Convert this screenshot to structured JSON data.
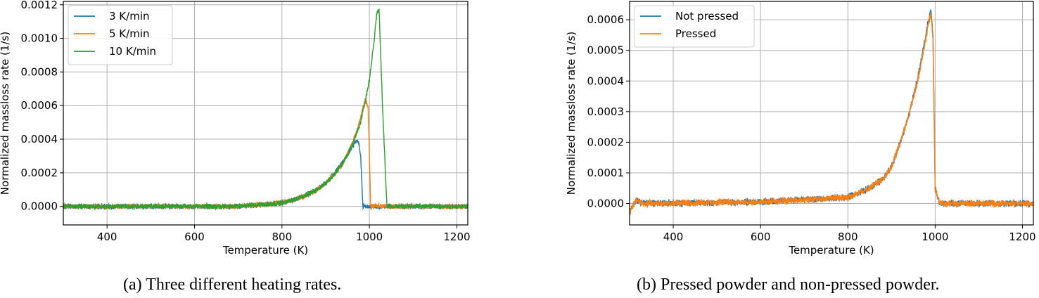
{
  "captions": {
    "a": "(a) Three different heating rates.",
    "b": "(b) Pressed powder and non-pressed powder."
  },
  "chart_data": [
    {
      "type": "line",
      "xlabel": "Temperature (K)",
      "ylabel": "Normalized massloss rate (1/s)",
      "xlim": [
        300,
        1225
      ],
      "ylim": [
        -0.00011,
        0.00122
      ],
      "xticks": [
        400,
        600,
        800,
        1000,
        1200
      ],
      "xtick_labels": [
        "400",
        "600",
        "800",
        "1000",
        "1200"
      ],
      "yticks": [
        0,
        0.0002,
        0.0004,
        0.0006,
        0.0008,
        0.001,
        0.0012
      ],
      "ytick_labels": [
        "0.0000",
        "0.0002",
        "0.0004",
        "0.0006",
        "0.0008",
        "0.0010",
        "0.0012"
      ],
      "grid": true,
      "legend_position": "top-left",
      "noise": 1.2e-05,
      "series": [
        {
          "name": "3 K/min",
          "color": "#1f77b4",
          "x": [
            300,
            700,
            800,
            850,
            880,
            900,
            920,
            940,
            955,
            965,
            970,
            975,
            980,
            985,
            1225
          ],
          "y": [
            0,
            0,
            2e-05,
            6e-05,
            0.0001,
            0.00014,
            0.0002,
            0.00027,
            0.00033,
            0.00037,
            0.00039,
            0.00038,
            0.0003,
            0,
            0
          ]
        },
        {
          "name": "5 K/min",
          "color": "#ff7f0e",
          "x": [
            300,
            700,
            800,
            850,
            880,
            900,
            920,
            940,
            960,
            975,
            985,
            990,
            993,
            997,
            1003,
            1225
          ],
          "y": [
            0,
            0,
            2e-05,
            6e-05,
            0.0001,
            0.00014,
            0.00019,
            0.00026,
            0.00037,
            0.00048,
            0.00058,
            0.00063,
            0.00062,
            0.0006,
            0,
            0
          ]
        },
        {
          "name": "10 K/min",
          "color": "#2ca02c",
          "x": [
            300,
            700,
            800,
            850,
            880,
            900,
            920,
            940,
            960,
            980,
            1000,
            1010,
            1017,
            1022,
            1030,
            1040,
            1225
          ],
          "y": [
            0,
            0,
            2e-05,
            6e-05,
            0.0001,
            0.00014,
            0.00019,
            0.00026,
            0.00036,
            0.0005,
            0.00075,
            0.00097,
            0.00115,
            0.00117,
            0.0006,
            0,
            0
          ]
        }
      ]
    },
    {
      "type": "line",
      "xlabel": "Temperature (K)",
      "ylabel": "Normalized massloss rate (1/s)",
      "xlim": [
        300,
        1225
      ],
      "ylim": [
        -7e-05,
        0.00066
      ],
      "xticks": [
        400,
        600,
        800,
        1000,
        1200
      ],
      "xtick_labels": [
        "400",
        "600",
        "800",
        "1000",
        "1200"
      ],
      "yticks": [
        0,
        0.0001,
        0.0002,
        0.0003,
        0.0004,
        0.0005,
        0.0006
      ],
      "ytick_labels": [
        "0.0000",
        "0.0001",
        "0.0002",
        "0.0003",
        "0.0004",
        "0.0005",
        "0.0006"
      ],
      "grid": true,
      "legend_position": "top-left",
      "noise": 9e-06,
      "series": [
        {
          "name": "Not pressed",
          "color": "#1f77b4",
          "x": [
            300,
            315,
            330,
            600,
            800,
            850,
            880,
            900,
            920,
            940,
            960,
            975,
            985,
            990,
            995,
            1000,
            1010,
            1225
          ],
          "y": [
            -3e-05,
            1e-05,
            0,
            5e-06,
            2e-05,
            5e-05,
            8e-05,
            0.00012,
            0.0002,
            0.00029,
            0.00041,
            0.00052,
            0.0006,
            0.00063,
            0.00055,
            5e-05,
            0,
            0
          ]
        },
        {
          "name": "Pressed",
          "color": "#ff7f0e",
          "x": [
            300,
            315,
            330,
            600,
            800,
            850,
            880,
            900,
            920,
            940,
            960,
            975,
            985,
            990,
            995,
            1000,
            1010,
            1225
          ],
          "y": [
            -3e-05,
            1e-05,
            0,
            5e-06,
            2e-05,
            5e-05,
            8e-05,
            0.00012,
            0.0002,
            0.00029,
            0.0004,
            0.00051,
            0.00059,
            0.00062,
            0.00054,
            5e-05,
            0,
            0
          ]
        }
      ]
    }
  ]
}
